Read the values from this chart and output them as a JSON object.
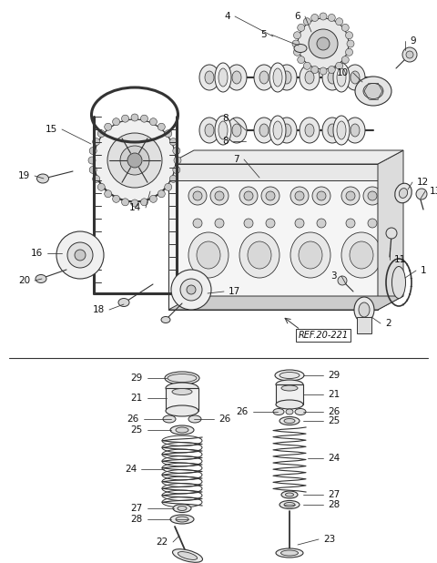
{
  "bg_color": "#ffffff",
  "line_color": "#333333",
  "label_color": "#111111",
  "ref_label": "REF.20-221",
  "fig_width": 4.8,
  "fig_height": 6.18,
  "dpi": 100
}
